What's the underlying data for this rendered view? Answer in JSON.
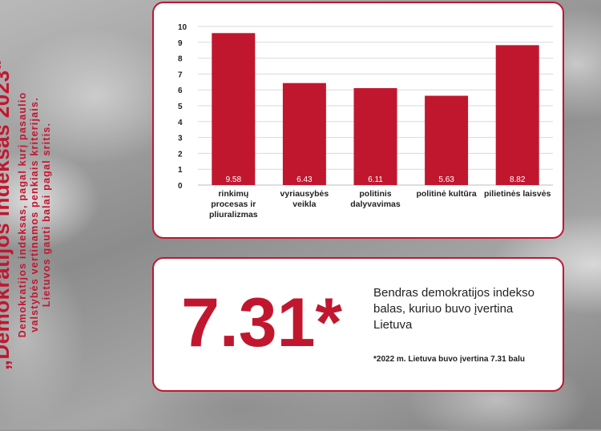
{
  "side": {
    "title": "„Demokratijos indeksas 2023“",
    "description_lines": [
      "Demokratijos indeksas, pagal kurį pasaulio",
      "valstybės vertinamos penkiais kriterijais.",
      "Lietuvos gauti balai pagal sritis."
    ]
  },
  "colors": {
    "accent": "#c0172f",
    "bar": "#c0172f"
  },
  "chart_data": {
    "type": "bar",
    "categories": [
      [
        "rinkimų",
        "procesas ir",
        "pliuralizmas"
      ],
      [
        "vyriausybės",
        "veikla"
      ],
      [
        "politinis",
        "dalyvavimas"
      ],
      [
        "politinė kultūra"
      ],
      [
        "pilietinės laisvės"
      ]
    ],
    "values": [
      9.58,
      6.43,
      6.11,
      5.63,
      8.82
    ],
    "value_labels": [
      "9.58",
      "6.43",
      "6.11",
      "5.63",
      "8.82"
    ],
    "yticks": [
      "0",
      "1",
      "2",
      "3",
      "4",
      "5",
      "6",
      "7",
      "8",
      "9",
      "10"
    ],
    "ylim": [
      0,
      10
    ],
    "grid": true,
    "legend": "none"
  },
  "summary": {
    "score": "7.31*",
    "caption": "Bendras demokratijos indekso balas, kuriuo buvo įvertina Lietuva",
    "footnote": "*2022 m.  Lietuva buvo įvertina 7.31 balu"
  }
}
